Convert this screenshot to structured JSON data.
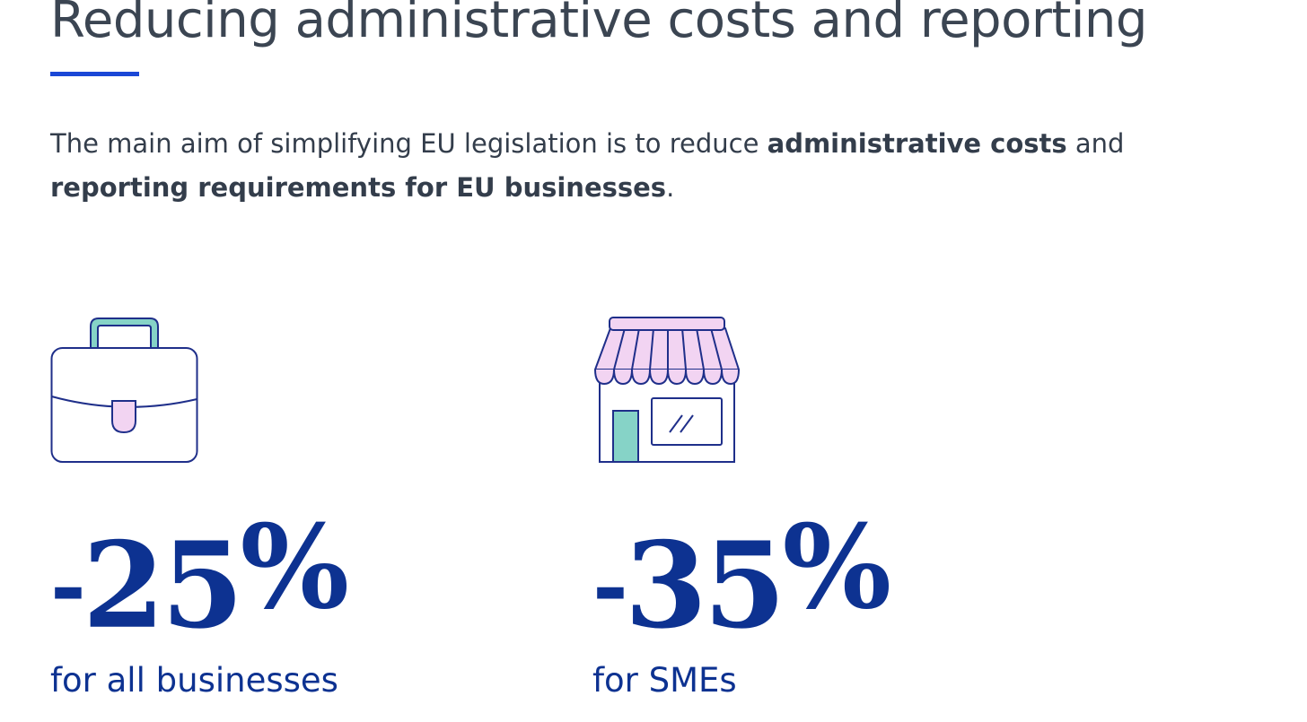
{
  "title": "Reducing administrative costs and reporting",
  "intro": {
    "part1": "The main aim of simplifying EU legislation is to reduce ",
    "bold1": "administrative costs",
    "part2": " and ",
    "bold2": "reporting requirements for EU businesses",
    "part3": "."
  },
  "stats": [
    {
      "icon": "briefcase-icon",
      "sign": "-",
      "number": "25",
      "unit": "%",
      "label": "for all businesses"
    },
    {
      "icon": "shop-icon",
      "sign": "-",
      "number": "35",
      "unit": "%",
      "label": "for SMEs"
    }
  ],
  "colors": {
    "heading": "#3b4552",
    "accent_bar": "#1a47d6",
    "stat_blue": "#0d3291",
    "icon_stroke": "#1f2f8a",
    "icon_teal": "#86d3c7",
    "icon_pink": "#f2d4f2"
  }
}
